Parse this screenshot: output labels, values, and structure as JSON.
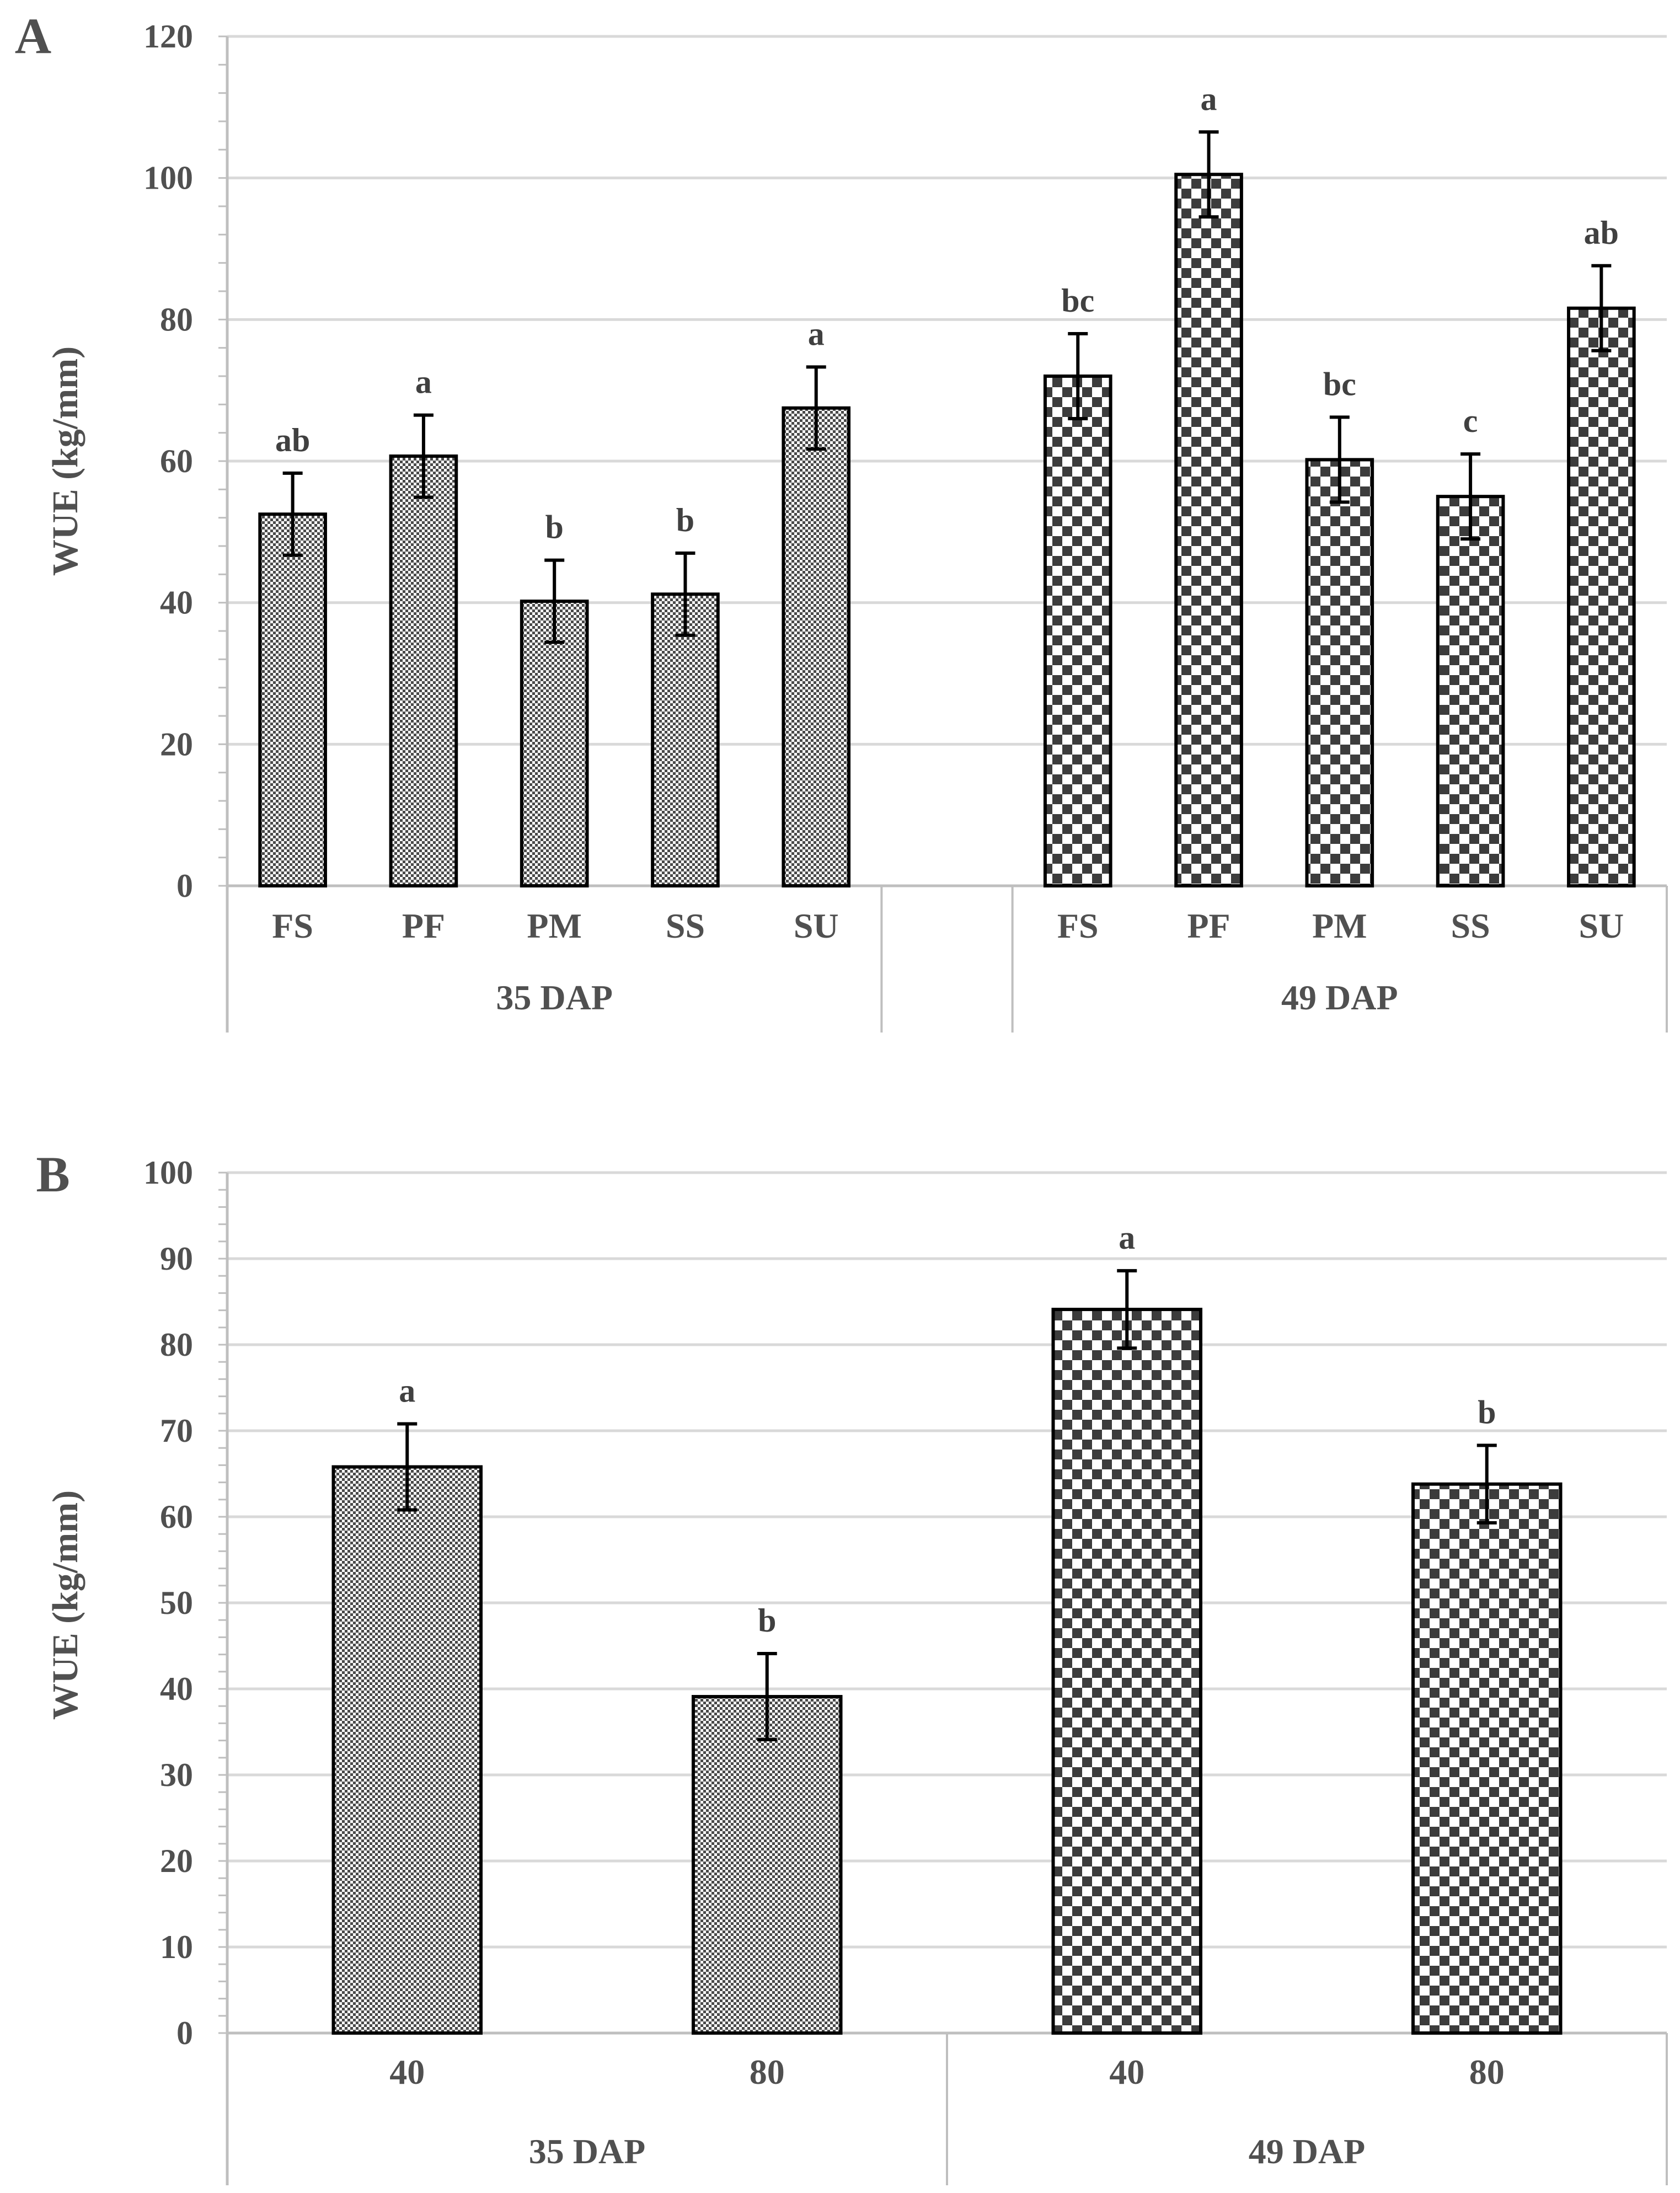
{
  "colors": {
    "grid": "#d9d9d9",
    "axis": "#bfbfbf",
    "bar_edge": "#000000",
    "text": "#505050"
  },
  "chart_data": [
    {
      "type": "bar",
      "panel_label": "A",
      "ylabel": "WUE (kg/mm)",
      "ylim": [
        0,
        120
      ],
      "yticks": [
        0,
        20,
        40,
        60,
        80,
        100,
        120
      ],
      "grid": true,
      "groups": [
        {
          "label": "35 DAP",
          "pattern": "fine",
          "categories": [
            "FS",
            "PF",
            "PM",
            "SS",
            "SU"
          ],
          "values": [
            52.5,
            60.7,
            40.2,
            41.2,
            67.5
          ],
          "errors": [
            5.8,
            5.8,
            5.8,
            5.8,
            5.8
          ],
          "letters": [
            "ab",
            "a",
            "b",
            "b",
            "a"
          ]
        },
        {
          "label": "49 DAP",
          "pattern": "check",
          "categories": [
            "FS",
            "PF",
            "PM",
            "SS",
            "SU"
          ],
          "values": [
            72.0,
            100.5,
            60.2,
            55.0,
            81.6
          ],
          "errors": [
            6.0,
            6.0,
            6.0,
            6.0,
            6.0
          ],
          "letters": [
            "bc",
            "a",
            "bc",
            "c",
            "ab"
          ]
        }
      ]
    },
    {
      "type": "bar",
      "panel_label": "B",
      "ylabel": "WUE (kg/mm)",
      "ylim": [
        0,
        100
      ],
      "yticks": [
        0,
        10,
        20,
        30,
        40,
        50,
        60,
        70,
        80,
        90,
        100
      ],
      "grid": true,
      "groups": [
        {
          "label": "35 DAP",
          "pattern": "fine",
          "categories": [
            "40",
            "80"
          ],
          "values": [
            65.8,
            39.1
          ],
          "errors": [
            5.0,
            5.0
          ],
          "letters": [
            "a",
            "b"
          ]
        },
        {
          "label": "49 DAP",
          "pattern": "check",
          "categories": [
            "40",
            "80"
          ],
          "values": [
            84.1,
            63.8
          ],
          "errors": [
            4.5,
            4.5
          ],
          "letters": [
            "a",
            "b"
          ]
        }
      ]
    }
  ]
}
